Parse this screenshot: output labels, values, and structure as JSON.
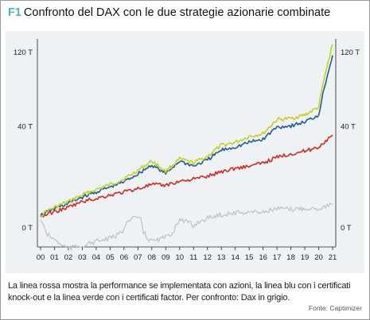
{
  "figure": {
    "tag": "F1",
    "title": "Confronto del DAX con le due strategie azionarie combinate",
    "caption": "La linea rossa mostra la performance se implementata con azioni, la linea blu con i certificati knock-out e la linea verde con i certificati factor. Per confronto: Dax in grigio.",
    "source": "Fonte: Captimizer"
  },
  "colors": {
    "panel": "#eef2f5",
    "axis": "#222222",
    "green": "#c9cf1a",
    "blue": "#1b5f97",
    "red": "#d32a22",
    "gray": "#c3c3c3"
  },
  "chart_data": {
    "type": "line",
    "x": [
      "00",
      "01",
      "02",
      "03",
      "04",
      "05",
      "06",
      "07",
      "08",
      "09",
      "10",
      "11",
      "12",
      "13",
      "14",
      "15",
      "16",
      "17",
      "18",
      "19",
      "20",
      "21"
    ],
    "y_ticks": [
      "120 T",
      "40 T",
      "0 T"
    ],
    "series": [
      {
        "color": "green",
        "values": [
          0.5,
          1.5,
          2.5,
          4.0,
          5.5,
          7.0,
          9.0,
          12.5,
          17.0,
          12.0,
          18.0,
          16.0,
          19.5,
          26.0,
          28.0,
          32.0,
          34.0,
          45.0,
          46.0,
          49.0,
          56.0,
          130.0
        ]
      },
      {
        "color": "blue",
        "values": [
          0.5,
          1.3,
          2.2,
          3.5,
          4.8,
          6.2,
          8.0,
          11.0,
          15.0,
          11.0,
          17.0,
          14.5,
          17.5,
          23.0,
          25.0,
          28.0,
          30.0,
          39.0,
          40.0,
          43.0,
          49.0,
          115.0
        ]
      },
      {
        "color": "red",
        "values": [
          0.4,
          0.9,
          1.5,
          2.5,
          3.2,
          4.0,
          4.8,
          5.8,
          7.0,
          6.8,
          8.2,
          9.0,
          10.0,
          12.0,
          13.5,
          14.5,
          16.0,
          19.0,
          21.0,
          22.5,
          25.0,
          33.0
        ]
      },
      {
        "color": "gray",
        "values": [
          0.2,
          -0.6,
          -1.8,
          -1.3,
          -0.8,
          -0.5,
          0.0,
          0.4,
          -0.8,
          -0.4,
          0.2,
          0.0,
          0.3,
          0.6,
          0.8,
          0.9,
          0.9,
          1.3,
          1.2,
          1.4,
          1.4,
          2.0
        ]
      }
    ]
  }
}
